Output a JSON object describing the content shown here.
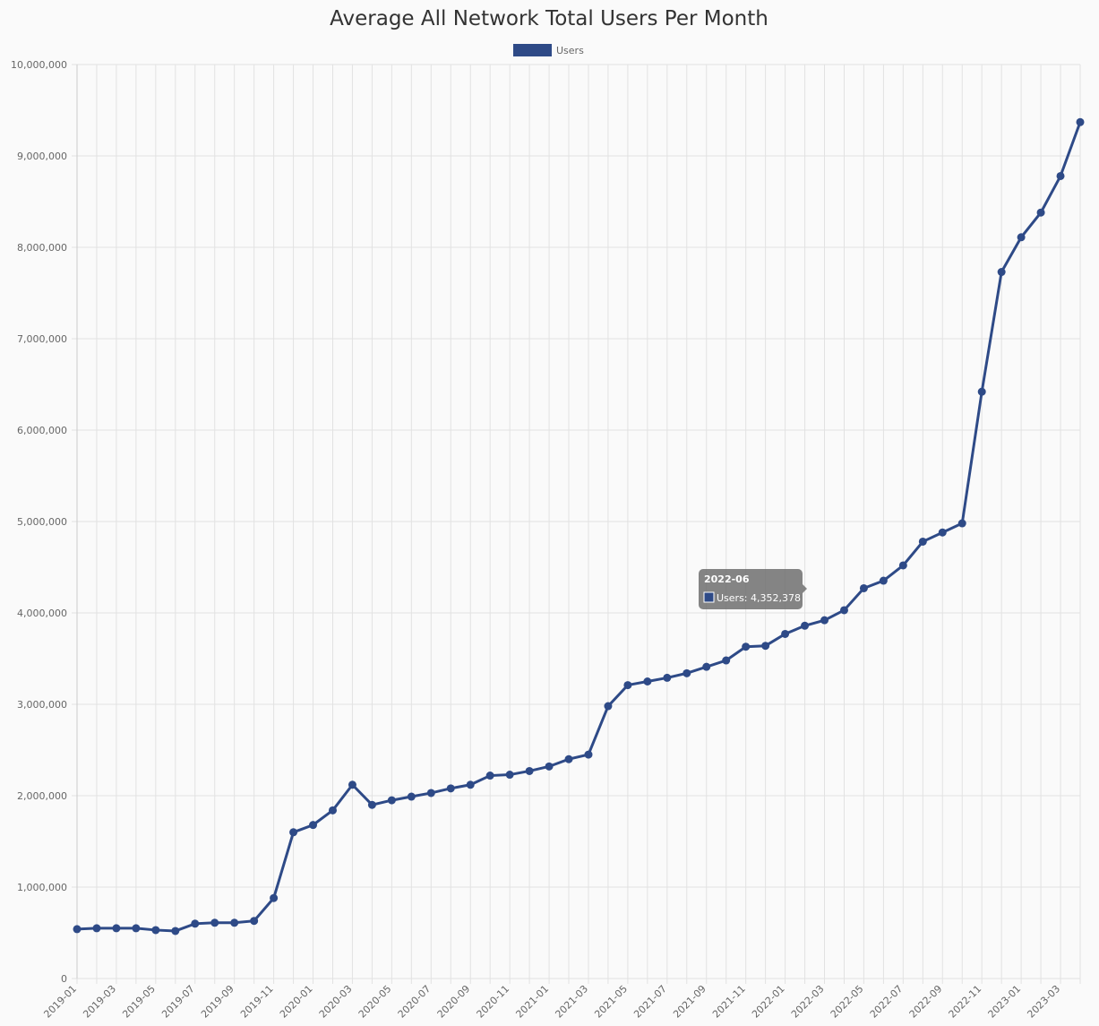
{
  "chart_data": {
    "type": "line",
    "title": "Average All Network Total Users Per Month",
    "categories": [
      "2019-01",
      null,
      "2019-03",
      null,
      "2019-05",
      null,
      "2019-07",
      null,
      "2019-09",
      null,
      "2019-11",
      null,
      "2020-01",
      null,
      "2020-03",
      null,
      "2020-05",
      null,
      "2020-07",
      null,
      "2020-09",
      null,
      "2020-11",
      null,
      "2021-01",
      null,
      "2021-03",
      null,
      "2021-05",
      null,
      "2021-07",
      null,
      "2021-09",
      null,
      "2021-11",
      null,
      "2022-01",
      null,
      "2022-03",
      null,
      "2022-05",
      null,
      "2022-07",
      null,
      "2022-09",
      null,
      "2022-11",
      null,
      "2023-01",
      null,
      "2023-03",
      null
    ],
    "series": [
      {
        "name": "Users",
        "color": "#2e4a87",
        "values": [
          540000,
          550000,
          550000,
          550000,
          530000,
          520000,
          600000,
          610000,
          610000,
          630000,
          880000,
          1600000,
          1680000,
          1840000,
          2120000,
          1900000,
          1950000,
          1990000,
          2030000,
          2080000,
          2120000,
          2220000,
          2230000,
          2270000,
          2320000,
          2400000,
          2450000,
          2980000,
          3210000,
          3250000,
          3290000,
          3340000,
          3410000,
          3480000,
          3630000,
          3640000,
          3770000,
          3860000,
          3920000,
          4030000,
          4270000,
          4352378,
          4520000,
          4780000,
          4880000,
          4980000,
          6420000,
          7730000,
          8110000,
          8380000,
          8780000,
          9370000
        ]
      }
    ],
    "ylim": [
      0,
      10000000
    ],
    "yticks": [
      0,
      {
        "value": 1000000,
        "label": "1,000,000"
      },
      {
        "value": 2000000,
        "label": "2,000,000"
      },
      {
        "value": 3000000,
        "label": "3,000,000"
      },
      {
        "value": 4000000,
        "label": "4,000,000"
      },
      {
        "value": 5000000,
        "label": "5,000,000"
      },
      {
        "value": 6000000,
        "label": "6,000,000"
      },
      {
        "value": 7000000,
        "label": "7,000,000"
      },
      {
        "value": 8000000,
        "label": "8,000,000"
      },
      {
        "value": 9000000,
        "label": "9,000,000"
      },
      {
        "value": 10000000,
        "label": "10,000,000"
      }
    ],
    "grid": true,
    "legend": "top",
    "tooltip": {
      "title": "2022-06",
      "text": "Users: 4,352,378"
    }
  }
}
